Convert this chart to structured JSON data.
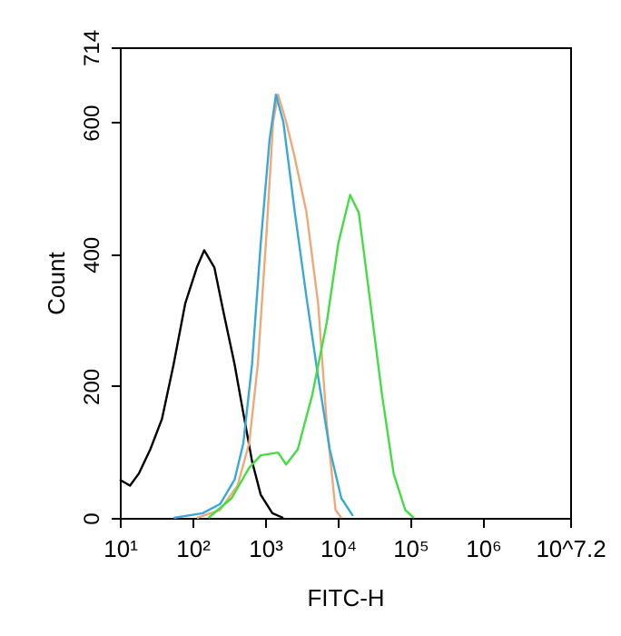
{
  "chart_data": {
    "type": "line",
    "xlabel": "FITC-H",
    "ylabel": "Count",
    "log": "x",
    "grid": false,
    "marker": "none",
    "line_style": "solid",
    "xlim": [
      10,
      15848932
    ],
    "xticks": [
      {
        "value": 10,
        "label": "10¹"
      },
      {
        "value": 100,
        "label": "10²"
      },
      {
        "value": 1000,
        "label": "10³"
      },
      {
        "value": 10000,
        "label": "10⁴"
      },
      {
        "value": 100000,
        "label": "10⁵"
      },
      {
        "value": 1000000,
        "label": "10⁶"
      },
      {
        "value": 15848932,
        "label": "10^7.2"
      }
    ],
    "ylim": [
      0,
      714
    ],
    "yticks": [
      0,
      200,
      400,
      600,
      714
    ],
    "series": [
      {
        "color": "#000000",
        "x": [
          10,
          13.8,
          18.2,
          26.3,
          38.0,
          55.0,
          79.4,
          115,
          145,
          200,
          263,
          380,
          501,
          661,
          871,
          1260,
          1780
        ],
        "values": [
          58,
          49,
          67,
          104,
          150,
          233,
          325,
          380,
          406,
          380,
          316,
          233,
          159,
          86,
          35,
          7,
          0
        ]
      },
      {
        "color": "#f0a878",
        "x": [
          115,
          240,
          417,
          603,
          794,
          1050,
          1290,
          1510,
          1950,
          2570,
          3720,
          5370,
          7080,
          9330,
          11200
        ],
        "values": [
          0,
          12,
          49,
          113,
          233,
          435,
          601,
          642,
          601,
          546,
          463,
          325,
          141,
          12,
          0
        ]
      },
      {
        "color": "#3aa8d8",
        "x": [
          55,
          138,
          240,
          380,
          501,
          661,
          871,
          1150,
          1410,
          1780,
          2570,
          3720,
          5370,
          7760,
          11200,
          16200
        ],
        "values": [
          0,
          7,
          21,
          58,
          113,
          233,
          417,
          573,
          642,
          601,
          463,
          334,
          214,
          104,
          30,
          3
        ]
      },
      {
        "color": "#44dd44",
        "x": [
          166,
          347,
          603,
          871,
          1510,
          1950,
          2820,
          4470,
          7080,
          10200,
          14800,
          19500,
          28200,
          40700,
          58900,
          85100,
          112000
        ],
        "values": [
          0,
          30,
          76,
          95,
          99,
          81,
          104,
          187,
          297,
          417,
          490,
          463,
          325,
          187,
          67,
          12,
          0
        ]
      }
    ]
  }
}
